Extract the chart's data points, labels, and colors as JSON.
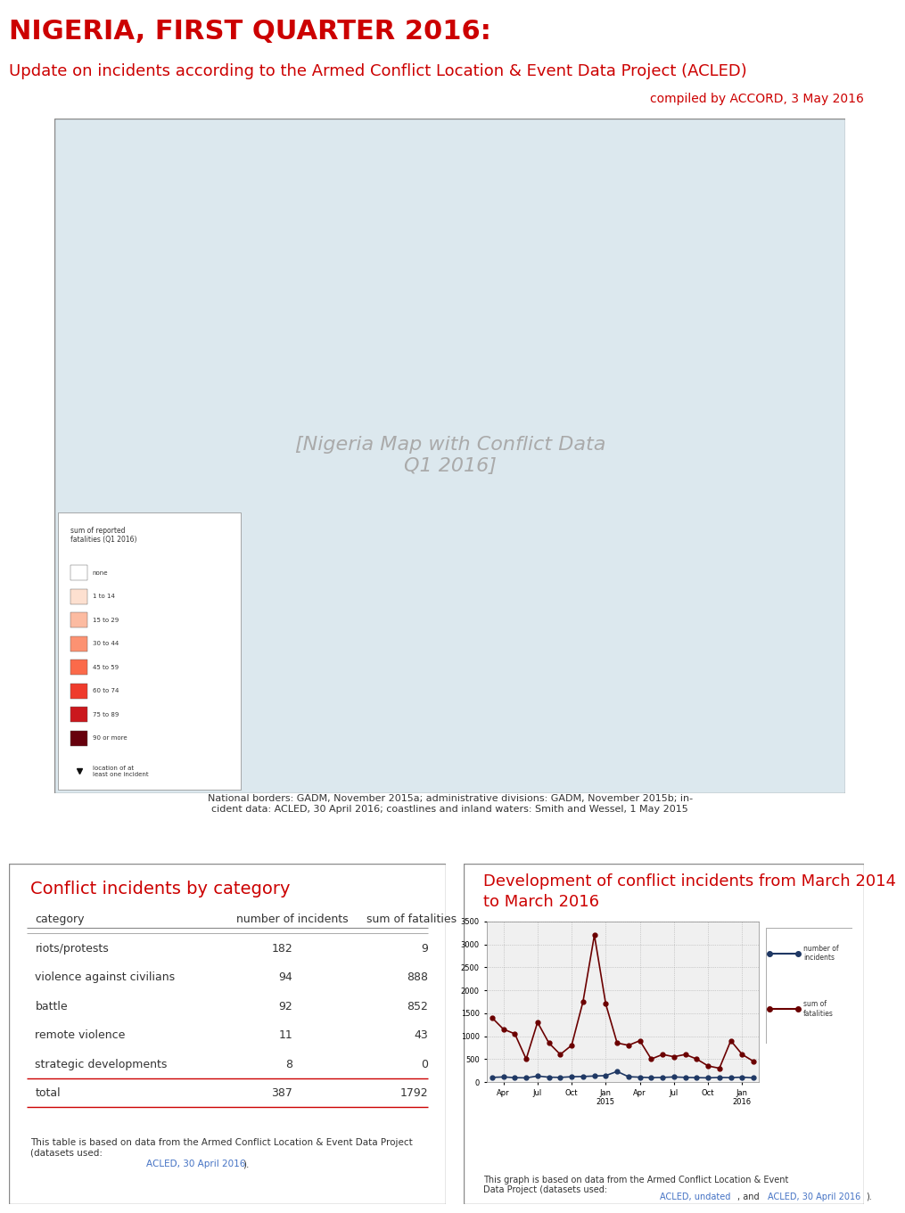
{
  "title_main": "NIGERIA, FIRST QUARTER 2016:",
  "title_sub": "Update on incidents according to the Armed Conflict Location & Event Data Project (ACLED)",
  "title_credit": "compiled by ACCORD, 3 May 2016",
  "title_main_color": "#cc0000",
  "title_sub_color": "#cc0000",
  "title_credit_color": "#cc0000",
  "table_title": "Conflict incidents by category",
  "table_title_color": "#cc0000",
  "table_headers": [
    "category",
    "number of incidents",
    "sum of fatalities"
  ],
  "table_rows": [
    [
      "riots/protests",
      "182",
      "9"
    ],
    [
      "violence against civilians",
      "94",
      "888"
    ],
    [
      "battle",
      "92",
      "852"
    ],
    [
      "remote violence",
      "11",
      "43"
    ],
    [
      "strategic developments",
      "8",
      "0"
    ]
  ],
  "table_total": [
    "total",
    "387",
    "1792"
  ],
  "chart_title": "Development of conflict incidents from March 2014\nto March 2016",
  "chart_title_color": "#cc0000",
  "incidents_data": [
    100,
    110,
    95,
    90,
    130,
    105,
    100,
    115,
    120,
    130,
    140,
    230,
    115,
    105,
    95,
    100,
    110,
    100,
    95,
    90,
    100,
    95,
    105,
    90
  ],
  "fatalities_data": [
    1400,
    1150,
    1050,
    500,
    1300,
    850,
    600,
    800,
    1750,
    3200,
    1700,
    850,
    800,
    900,
    500,
    600,
    550,
    600,
    500,
    350,
    300,
    900,
    600,
    450
  ],
  "incidents_color": "#1f3864",
  "fatalities_color": "#6b0000",
  "background_color": "#ffffff",
  "panel_bg": "#ffffff"
}
